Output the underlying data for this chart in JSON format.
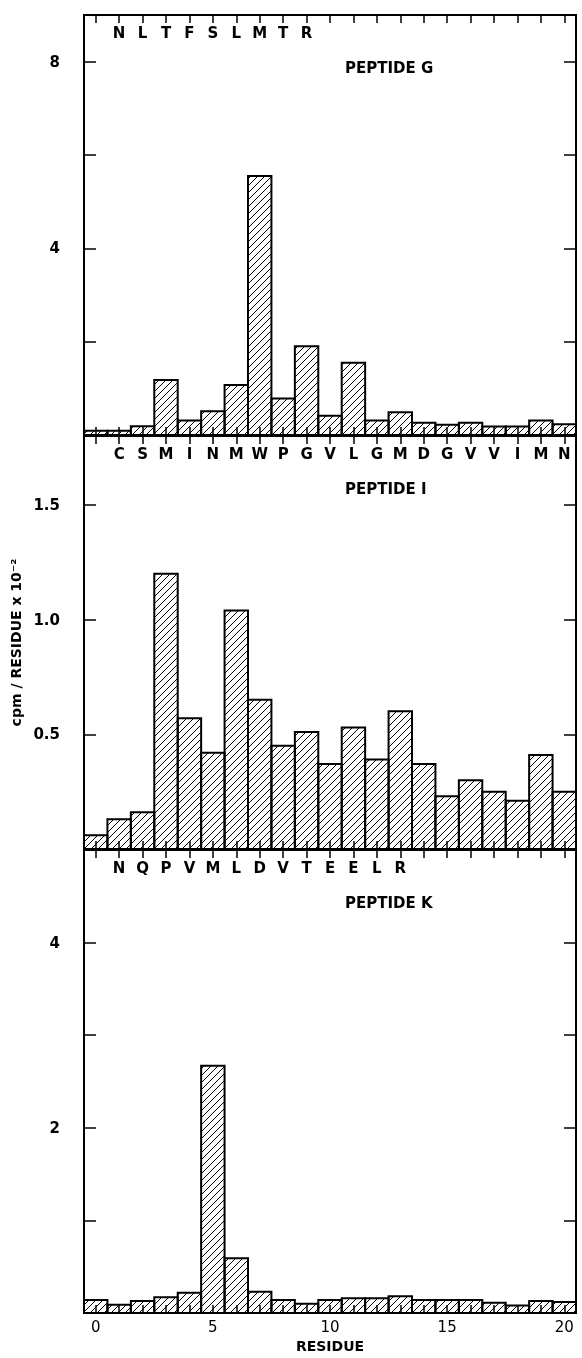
{
  "chart_data": [
    {
      "type": "histogram",
      "title": "PEPTIDE G",
      "annotations": [
        "N L T F S L M T R"
      ],
      "bins": [
        -0.5,
        0.5,
        1.5,
        2.5,
        3.5,
        4.5,
        5.5,
        6.5,
        7.5,
        8.5,
        9.5,
        10.5,
        11.5,
        12.5,
        13.5,
        14.5,
        15.5,
        16.5,
        17.5,
        18.5,
        19.5,
        20.5
      ],
      "values": [
        0.09,
        0.09,
        0.19,
        1.18,
        0.31,
        0.51,
        1.07,
        5.55,
        0.78,
        1.9,
        0.41,
        1.55,
        0.31,
        0.49,
        0.26,
        0.22,
        0.26,
        0.18,
        0.18,
        0.31,
        0.23
      ],
      "color": "#000000",
      "xlim": [
        -0.5,
        20.5
      ],
      "xticks": [
        0,
        {
          "value": 1,
          "label": null
        },
        {
          "value": 2,
          "label": null
        },
        {
          "value": 3,
          "label": null
        },
        {
          "value": 4,
          "label": null
        },
        5,
        {
          "value": 6,
          "label": null
        },
        {
          "value": 7,
          "label": null
        },
        {
          "value": 8,
          "label": null
        },
        {
          "value": 9,
          "label": null
        },
        10,
        {
          "value": 11,
          "label": null
        },
        {
          "value": 12,
          "label": null
        },
        {
          "value": 13,
          "label": null
        },
        {
          "value": 14,
          "label": null
        },
        15,
        {
          "value": 16,
          "label": null
        },
        {
          "value": 17,
          "label": null
        },
        {
          "value": 18,
          "label": null
        },
        {
          "value": 19,
          "label": null
        },
        20
      ],
      "ylim": [
        0,
        9
      ],
      "yticks": [
        {
          "value": 2,
          "label": null
        },
        4,
        {
          "value": 6,
          "label": null
        },
        8
      ],
      "tick_labels": "y"
    },
    {
      "type": "histogram",
      "title": "PEPTIDE I",
      "ylabel": "cpm / RESIDUE x 10⁻²",
      "annotations": [
        "C S M I N M W P G V L G M D G V V I M N"
      ],
      "bins": [
        -0.5,
        0.5,
        1.5,
        2.5,
        3.5,
        4.5,
        5.5,
        6.5,
        7.5,
        8.5,
        9.5,
        10.5,
        11.5,
        12.5,
        13.5,
        14.5,
        15.5,
        16.5,
        17.5,
        18.5,
        19.5,
        20.5
      ],
      "values": [
        0.06,
        0.13,
        0.16,
        1.2,
        0.57,
        0.42,
        1.04,
        0.65,
        0.45,
        0.51,
        0.37,
        0.53,
        0.39,
        0.6,
        0.37,
        0.23,
        0.3,
        0.25,
        0.21,
        0.41,
        0.25
      ],
      "color": "#000000",
      "xlim": [
        -0.5,
        20.5
      ],
      "xticks": [
        0,
        {
          "value": 1,
          "label": null
        },
        {
          "value": 2,
          "label": null
        },
        {
          "value": 3,
          "label": null
        },
        {
          "value": 4,
          "label": null
        },
        5,
        {
          "value": 6,
          "label": null
        },
        {
          "value": 7,
          "label": null
        },
        {
          "value": 8,
          "label": null
        },
        {
          "value": 9,
          "label": null
        },
        10,
        {
          "value": 11,
          "label": null
        },
        {
          "value": 12,
          "label": null
        },
        {
          "value": 13,
          "label": null
        },
        {
          "value": 14,
          "label": null
        },
        15,
        {
          "value": 16,
          "label": null
        },
        {
          "value": 17,
          "label": null
        },
        {
          "value": 18,
          "label": null
        },
        {
          "value": 19,
          "label": null
        },
        20
      ],
      "ylim": [
        0,
        1.8
      ],
      "yticks": [
        0.5,
        {
          "value": 1,
          "label": "1.0"
        },
        1.5
      ],
      "tick_labels": "y"
    },
    {
      "type": "histogram",
      "title": "PEPTIDE K",
      "xlabel": "RESIDUE",
      "annotations": [
        "N Q P V M L D V T E E L R"
      ],
      "bins": [
        -0.5,
        0.5,
        1.5,
        2.5,
        3.5,
        4.5,
        5.5,
        6.5,
        7.5,
        8.5,
        9.5,
        10.5,
        11.5,
        12.5,
        13.5,
        14.5,
        15.5,
        16.5,
        17.5,
        18.5,
        19.5,
        20.5
      ],
      "values": [
        0.14,
        0.09,
        0.13,
        0.17,
        0.22,
        2.67,
        0.59,
        0.23,
        0.14,
        0.1,
        0.14,
        0.16,
        0.16,
        0.18,
        0.14,
        0.14,
        0.14,
        0.11,
        0.08,
        0.13,
        0.12
      ],
      "color": "#000000",
      "xlim": [
        -0.5,
        20.5
      ],
      "xticks": [
        0,
        {
          "value": 1,
          "label": null
        },
        {
          "value": 2,
          "label": null
        },
        {
          "value": 3,
          "label": null
        },
        {
          "value": 4,
          "label": null
        },
        5,
        {
          "value": 6,
          "label": null
        },
        {
          "value": 7,
          "label": null
        },
        {
          "value": 8,
          "label": null
        },
        {
          "value": 9,
          "label": null
        },
        10,
        {
          "value": 11,
          "label": null
        },
        {
          "value": 12,
          "label": null
        },
        {
          "value": 13,
          "label": null
        },
        {
          "value": 14,
          "label": null
        },
        15,
        {
          "value": 16,
          "label": null
        },
        {
          "value": 17,
          "label": null
        },
        {
          "value": 18,
          "label": null
        },
        {
          "value": 19,
          "label": null
        },
        20
      ],
      "ylim": [
        0,
        5
      ],
      "yticks": [
        {
          "value": 1,
          "label": null
        },
        2,
        {
          "value": 3,
          "label": null
        },
        4
      ]
    }
  ]
}
